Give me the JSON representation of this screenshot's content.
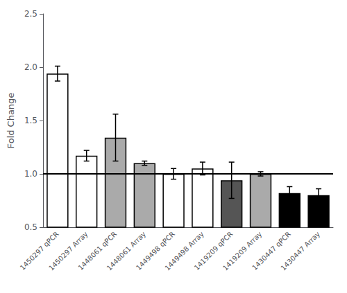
{
  "chart_data": {
    "type": "bar",
    "categories": [
      "1450297 qPCR",
      "1450297 Array",
      "1448061 qPCR",
      "1448061 Array",
      "1449498 qPCR",
      "1449498 Array",
      "1419209 qPCR",
      "1419209 Array",
      "1430447 qPCR",
      "1430447 Array"
    ],
    "values": [
      1.94,
      1.17,
      1.34,
      1.1,
      1.0,
      1.05,
      0.94,
      1.0,
      0.82,
      0.8
    ],
    "errors": [
      0.07,
      0.05,
      0.22,
      0.02,
      0.05,
      0.06,
      0.17,
      0.02,
      0.06,
      0.06
    ],
    "colors": [
      "white",
      "white",
      "#aaaaaa",
      "#aaaaaa",
      "white",
      "white",
      "#555555",
      "#aaaaaa",
      "black",
      "black"
    ],
    "ylabel": "Fold Change",
    "ylim": [
      0.5,
      2.5
    ],
    "yticks": [
      0.5,
      {
        "value": 1.0,
        "label": "1.0"
      },
      1.5,
      {
        "value": 2.0,
        "label": "2.0"
      },
      2.5
    ],
    "hline": 1.0,
    "grid": false
  }
}
